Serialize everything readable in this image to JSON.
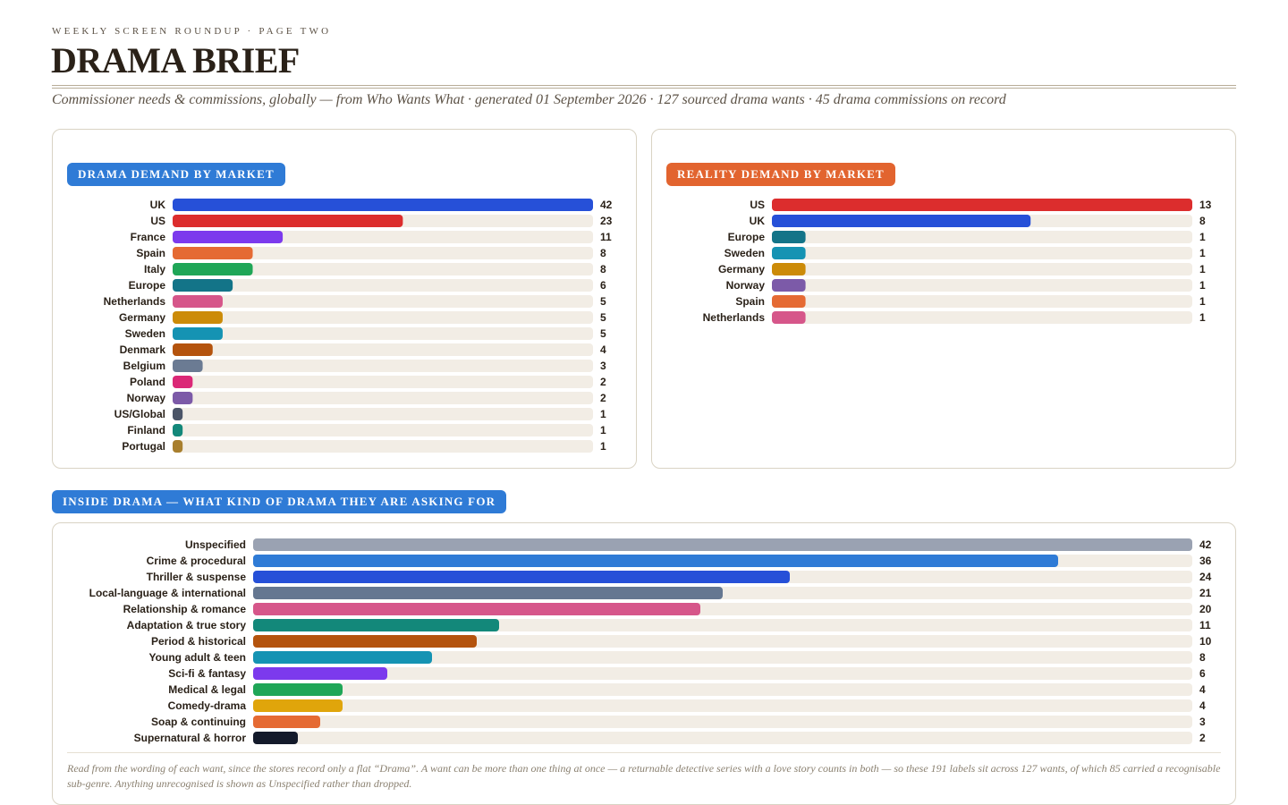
{
  "header": {
    "kicker": "WEEKLY SCREEN ROUNDUP · PAGE TWO",
    "title": "DRAMA BRIEF",
    "subtitle": "Commissioner needs & commissions, globally — from Who Wants What · generated 01 September 2026 · 127 sourced drama wants · 45 drama commissions on record"
  },
  "footnote": "Read from the wording of each want, since the stores record only a flat “Drama”. A want can be more than one thing at once — a returnable detective series with a love story counts in both — so these 191 labels sit across 127 wants, of which 85 carried a recognisable sub-genre. Anything unrecognised is shown as Unspecified rather than dropped.",
  "chart_data": [
    {
      "id": "drama",
      "type": "bar",
      "orientation": "horizontal",
      "title": "DRAMA DEMAND BY MARKET",
      "title_color": "#2f7bd6",
      "max": 42,
      "categories": [
        "UK",
        "US",
        "France",
        "Spain",
        "Italy",
        "Europe",
        "Netherlands",
        "Germany",
        "Sweden",
        "Denmark",
        "Belgium",
        "Poland",
        "Norway",
        "US/Global",
        "Finland",
        "Portugal"
      ],
      "values": [
        42,
        23,
        11,
        8,
        8,
        6,
        5,
        5,
        5,
        4,
        3,
        2,
        2,
        1,
        1,
        1
      ],
      "colors": [
        "#2650d8",
        "#dc2d2d",
        "#7c3aed",
        "#e56a33",
        "#1fa657",
        "#137488",
        "#d6568a",
        "#cc8b08",
        "#1593b3",
        "#b4530d",
        "#6b7b93",
        "#db2877",
        "#7c5aa8",
        "#4b5568",
        "#13887a",
        "#a87f2e"
      ],
      "track_color": "#f2ede5"
    },
    {
      "id": "reality",
      "type": "bar",
      "orientation": "horizontal",
      "title": "REALITY DEMAND BY MARKET",
      "title_color": "#e2642f",
      "max": 13,
      "categories": [
        "US",
        "UK",
        "Europe",
        "Sweden",
        "Germany",
        "Norway",
        "Spain",
        "Netherlands"
      ],
      "values": [
        13,
        8,
        1,
        1,
        1,
        1,
        1,
        1
      ],
      "colors": [
        "#dc2d2d",
        "#2650d8",
        "#137488",
        "#1593b3",
        "#cc8b08",
        "#7c5aa8",
        "#e56a33",
        "#d6568a"
      ],
      "min_bar_fraction": 0.08,
      "track_color": "#f2ede5"
    },
    {
      "id": "genre",
      "type": "bar",
      "orientation": "horizontal",
      "title": "INSIDE DRAMA — WHAT KIND OF DRAMA THEY ARE ASKING FOR",
      "title_color": "#2f7bd6",
      "max": 42,
      "categories": [
        "Unspecified",
        "Crime & procedural",
        "Thriller & suspense",
        "Local-language & international",
        "Relationship & romance",
        "Adaptation & true story",
        "Period & historical",
        "Young adult & teen",
        "Sci-fi & fantasy",
        "Medical & legal",
        "Comedy-drama",
        "Soap & continuing",
        "Supernatural & horror"
      ],
      "values": [
        42,
        36,
        24,
        21,
        20,
        11,
        10,
        8,
        6,
        4,
        4,
        3,
        2
      ],
      "colors": [
        "#9aa2b2",
        "#2f7bd6",
        "#2650d8",
        "#657791",
        "#d6568a",
        "#13887a",
        "#b4530d",
        "#1593b3",
        "#7c3aed",
        "#1fa657",
        "#e0a50b",
        "#e56a33",
        "#141a2b"
      ],
      "track_color": "#f2ede5"
    }
  ]
}
